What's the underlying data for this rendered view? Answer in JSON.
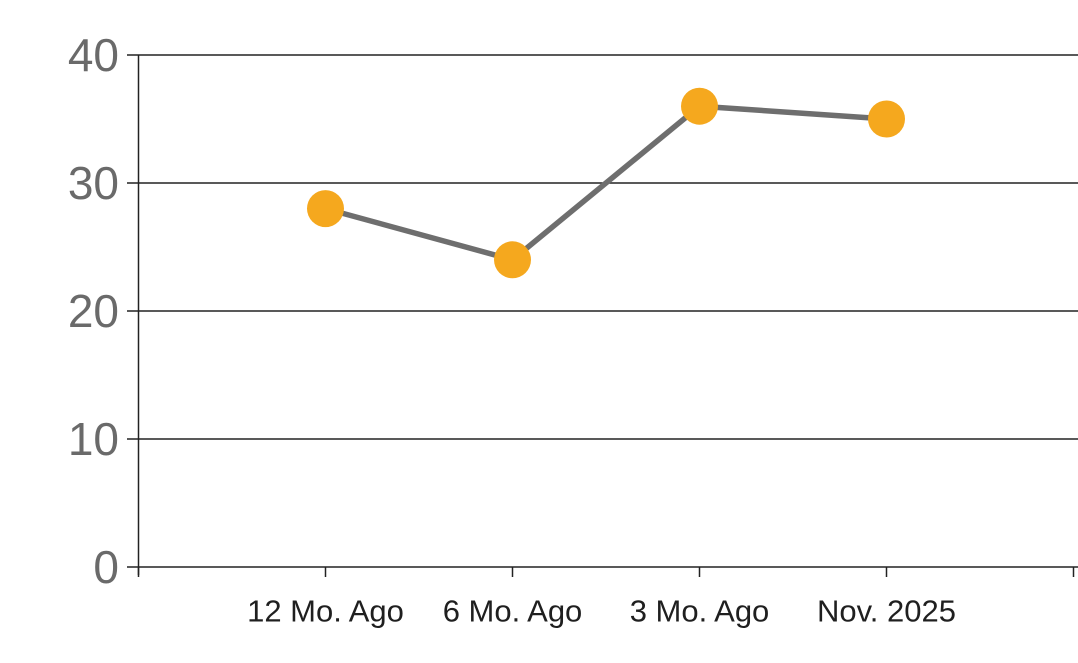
{
  "chart_data": {
    "type": "line",
    "categories": [
      "12 Mo. Ago",
      "6 Mo. Ago",
      "3 Mo. Ago",
      "Nov. 2025"
    ],
    "values": [
      28,
      24,
      36,
      35
    ],
    "series": [
      {
        "name": "series-1",
        "values": [
          28,
          24,
          36,
          35
        ]
      }
    ],
    "title": "",
    "xlabel": "",
    "ylabel": "",
    "ylim": [
      0,
      40
    ],
    "yticks": [
      0,
      10,
      20,
      30,
      40
    ],
    "grid": "horizontal",
    "legend": "none",
    "marker_shape": "circle",
    "colors": {
      "marker": "#F5A81E",
      "line": "#6E6E6E",
      "grid": "#222222",
      "axis": "#222222",
      "y_tick_label": "#6A6A6A",
      "x_tick_label": "#1F1F1F",
      "background": "#FFFFFF"
    }
  }
}
